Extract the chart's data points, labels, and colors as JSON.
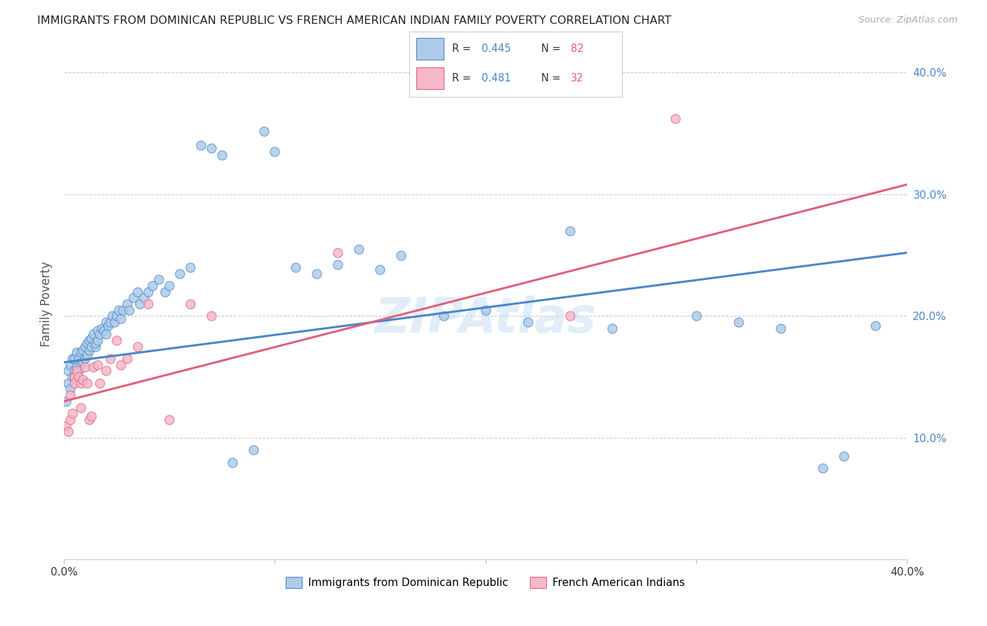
{
  "title": "IMMIGRANTS FROM DOMINICAN REPUBLIC VS FRENCH AMERICAN INDIAN FAMILY POVERTY CORRELATION CHART",
  "source": "Source: ZipAtlas.com",
  "ylabel": "Family Poverty",
  "legend_label_blue": "Immigrants from Dominican Republic",
  "legend_label_pink": "French American Indians",
  "r_blue": "0.445",
  "n_blue": "82",
  "r_pink": "0.481",
  "n_pink": "32",
  "blue_color": "#aecce8",
  "pink_color": "#f5b8c8",
  "blue_line_color": "#4a86c8",
  "pink_line_color": "#e0607a",
  "title_color": "#333333",
  "source_color": "#aaaaaa",
  "legend_r_color": "#4a86c8",
  "legend_n_color": "#e0607a",
  "watermark": "ZIPAtlas",
  "blue_line_x0": 0.0,
  "blue_line_y0": 0.162,
  "blue_line_x1": 0.4,
  "blue_line_y1": 0.252,
  "pink_line_x0": 0.0,
  "pink_line_y0": 0.13,
  "pink_line_x1": 0.4,
  "pink_line_y1": 0.308,
  "blue_scatter_x": [
    0.001,
    0.002,
    0.002,
    0.003,
    0.003,
    0.004,
    0.004,
    0.005,
    0.005,
    0.005,
    0.006,
    0.006,
    0.006,
    0.007,
    0.007,
    0.008,
    0.008,
    0.009,
    0.009,
    0.01,
    0.01,
    0.011,
    0.011,
    0.012,
    0.012,
    0.013,
    0.013,
    0.014,
    0.015,
    0.015,
    0.016,
    0.016,
    0.017,
    0.018,
    0.019,
    0.02,
    0.02,
    0.021,
    0.022,
    0.023,
    0.024,
    0.025,
    0.026,
    0.027,
    0.028,
    0.03,
    0.031,
    0.033,
    0.035,
    0.036,
    0.038,
    0.04,
    0.042,
    0.045,
    0.048,
    0.05,
    0.055,
    0.06,
    0.065,
    0.07,
    0.075,
    0.08,
    0.09,
    0.095,
    0.1,
    0.11,
    0.12,
    0.13,
    0.14,
    0.15,
    0.16,
    0.18,
    0.2,
    0.22,
    0.24,
    0.26,
    0.3,
    0.32,
    0.34,
    0.36,
    0.37,
    0.385
  ],
  "blue_scatter_y": [
    0.13,
    0.155,
    0.145,
    0.16,
    0.14,
    0.165,
    0.15,
    0.155,
    0.165,
    0.15,
    0.17,
    0.158,
    0.148,
    0.165,
    0.155,
    0.17,
    0.16,
    0.172,
    0.162,
    0.175,
    0.165,
    0.178,
    0.168,
    0.18,
    0.172,
    0.182,
    0.175,
    0.185,
    0.175,
    0.178,
    0.188,
    0.18,
    0.185,
    0.19,
    0.188,
    0.195,
    0.185,
    0.192,
    0.195,
    0.2,
    0.195,
    0.2,
    0.205,
    0.198,
    0.205,
    0.21,
    0.205,
    0.215,
    0.22,
    0.21,
    0.215,
    0.22,
    0.225,
    0.23,
    0.22,
    0.225,
    0.235,
    0.24,
    0.34,
    0.338,
    0.332,
    0.08,
    0.09,
    0.352,
    0.335,
    0.24,
    0.235,
    0.242,
    0.255,
    0.238,
    0.25,
    0.2,
    0.205,
    0.195,
    0.27,
    0.19,
    0.2,
    0.195,
    0.19,
    0.075,
    0.085,
    0.192
  ],
  "pink_scatter_x": [
    0.001,
    0.002,
    0.003,
    0.003,
    0.004,
    0.005,
    0.005,
    0.006,
    0.007,
    0.008,
    0.008,
    0.009,
    0.01,
    0.011,
    0.012,
    0.013,
    0.014,
    0.016,
    0.017,
    0.02,
    0.022,
    0.025,
    0.027,
    0.03,
    0.035,
    0.04,
    0.05,
    0.06,
    0.07,
    0.13,
    0.24,
    0.29
  ],
  "pink_scatter_y": [
    0.11,
    0.105,
    0.115,
    0.135,
    0.12,
    0.15,
    0.145,
    0.155,
    0.15,
    0.125,
    0.145,
    0.148,
    0.158,
    0.145,
    0.115,
    0.118,
    0.158,
    0.16,
    0.145,
    0.155,
    0.165,
    0.18,
    0.16,
    0.165,
    0.175,
    0.21,
    0.115,
    0.21,
    0.2,
    0.252,
    0.2,
    0.362
  ],
  "xlim": [
    0.0,
    0.4
  ],
  "ylim": [
    0.0,
    0.42
  ],
  "yticks": [
    0.1,
    0.2,
    0.3,
    0.4
  ],
  "ytick_labels": [
    "10.0%",
    "20.0%",
    "30.0%",
    "40.0%"
  ],
  "xticks": [
    0.0,
    0.1,
    0.2,
    0.3,
    0.4
  ],
  "xtick_labels": [
    "0.0%",
    "",
    "",
    "",
    "40.0%"
  ]
}
